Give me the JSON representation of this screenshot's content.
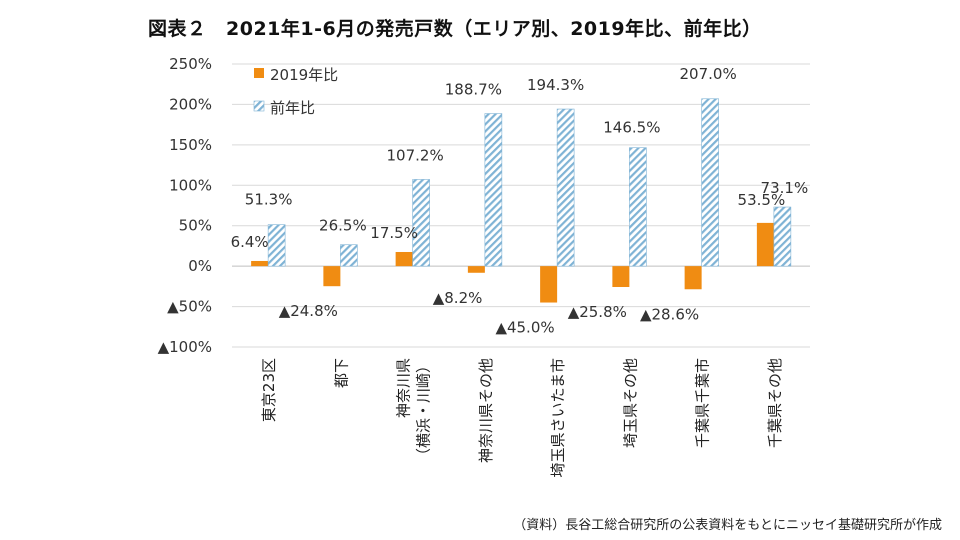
{
  "title": "図表２　2021年1-6月の発売戸数（エリア別、2019年比、前年比）",
  "source": "（資料）長谷工総合研究所の公表資料をもとにニッセイ基礎研究所が作成",
  "colors": {
    "series1": "#F08C12",
    "series2_stripe": "#7FB3D5",
    "grid": "#D9D9D9",
    "axis": "#BFBFBF"
  },
  "chart_data": {
    "type": "bar",
    "title": "2021年1-6月の発売戸数（エリア別、2019年比、前年比）",
    "categories": [
      "東京23区",
      "都下",
      "神奈川県（横浜・川崎）",
      "神奈川県その他",
      "埼玉県さいたま市",
      "埼玉県その他",
      "千葉県千葉市",
      "千葉県その他"
    ],
    "category_lines": [
      [
        "東京23区"
      ],
      [
        "都下"
      ],
      [
        "神奈川県",
        "（横浜・川崎）"
      ],
      [
        "神奈川県その他"
      ],
      [
        "埼玉県さいたま市"
      ],
      [
        "埼玉県その他"
      ],
      [
        "千葉県千葉市"
      ],
      [
        "千葉県その他"
      ]
    ],
    "series": [
      {
        "name": "2019年比",
        "values": [
          6.4,
          -24.8,
          17.5,
          -8.2,
          -45.0,
          -25.8,
          -28.6,
          53.5
        ],
        "labels": [
          "6.4%",
          "▲24.8%",
          "17.5%",
          "▲8.2%",
          "▲45.0%",
          "▲25.8%",
          "▲28.6%",
          "53.5%"
        ]
      },
      {
        "name": "前年比",
        "values": [
          51.3,
          26.5,
          107.2,
          188.7,
          194.3,
          146.5,
          207.0,
          73.1
        ],
        "labels": [
          "51.3%",
          "26.5%",
          "107.2%",
          "188.7%",
          "194.3%",
          "146.5%",
          "207.0%",
          "73.1%"
        ]
      }
    ],
    "yticks": [
      250,
      200,
      150,
      100,
      50,
      0,
      -50,
      -100
    ],
    "ytick_labels": [
      "250%",
      "200%",
      "150%",
      "100%",
      "50%",
      "0%",
      "▲50%",
      "▲100%"
    ],
    "ylim": [
      -100,
      250
    ],
    "legend": "top-left",
    "grid": true
  }
}
